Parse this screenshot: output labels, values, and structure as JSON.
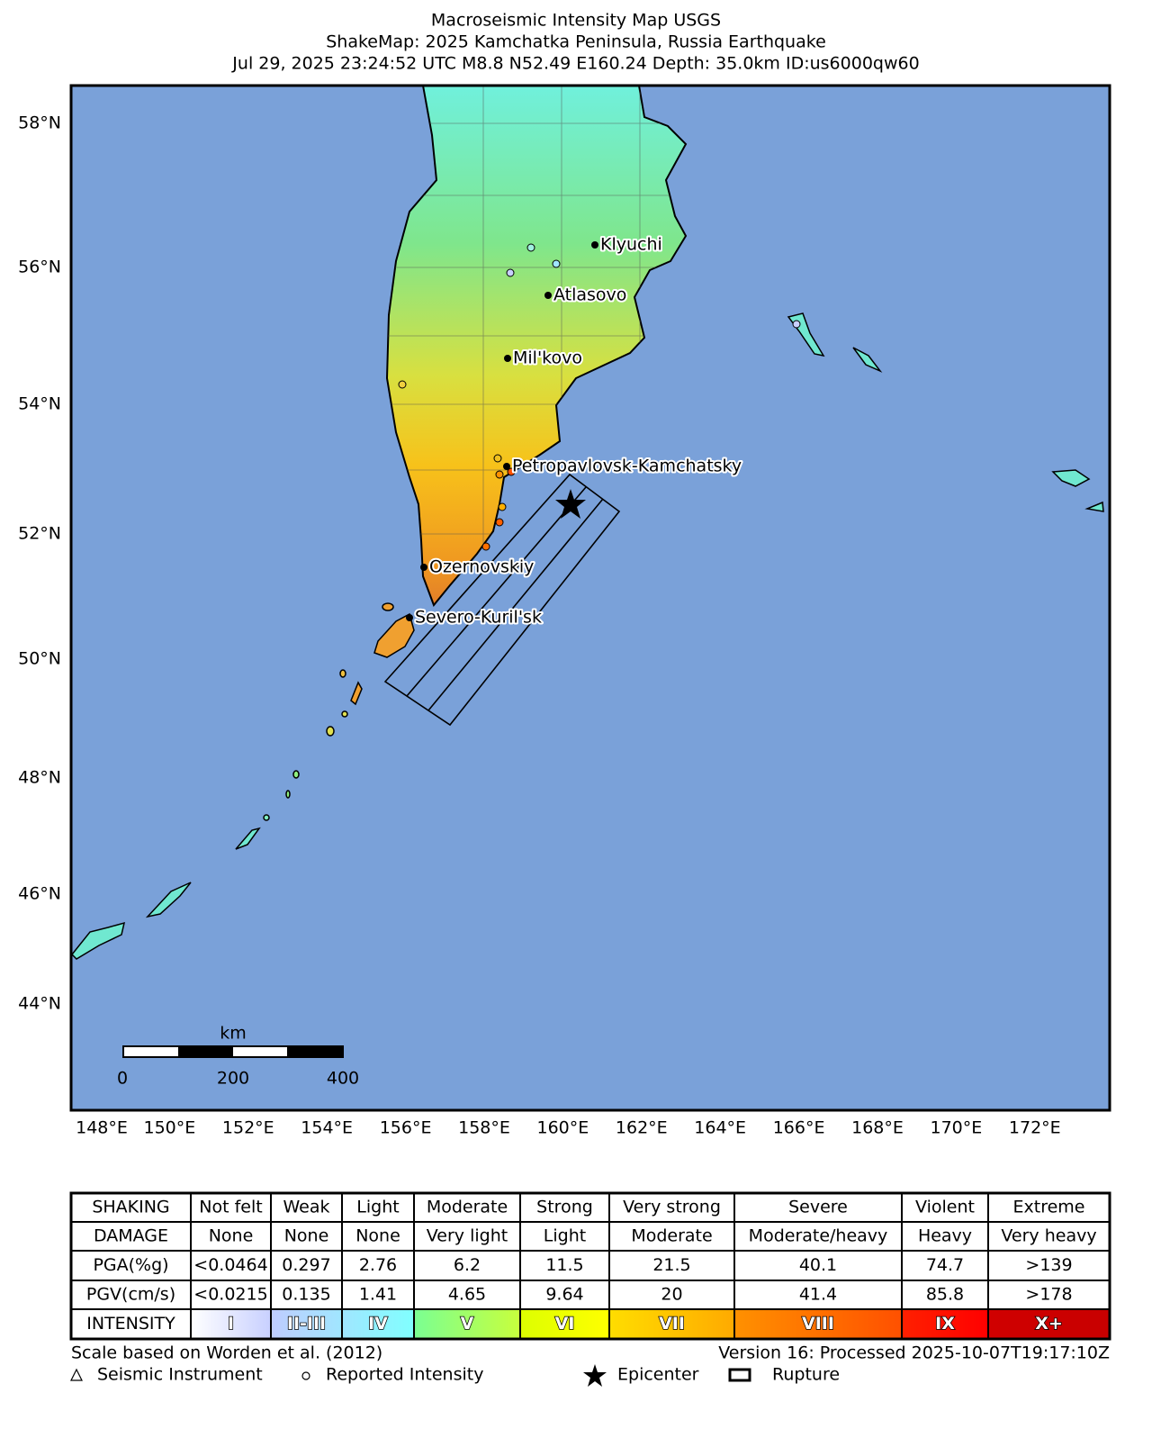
{
  "header": {
    "title": "Macroseismic Intensity Map USGS",
    "subtitle": "ShakeMap: 2025 Kamchatka Peninsula, Russia Earthquake",
    "details": "Jul 29, 2025 23:24:52 UTC M8.8 N52.49 E160.24 Depth: 35.0km ID:us6000qw60"
  },
  "map": {
    "lat_labels": [
      "58°N",
      "56°N",
      "54°N",
      "52°N",
      "50°N",
      "48°N",
      "46°N",
      "44°N"
    ],
    "lon_labels": [
      "148°E",
      "150°E",
      "152°E",
      "154°E",
      "156°E",
      "158°E",
      "160°E",
      "162°E",
      "164°E",
      "166°E",
      "168°E",
      "170°E",
      "172°E"
    ],
    "cities": [
      "Klyuchi",
      "Atlasovo",
      "Mil'kovo",
      "Petropavlovsk-Kamchatsky",
      "Ozernovskiy",
      "Severo-Kuril'sk"
    ],
    "scale_bar": {
      "unit": "km",
      "labels": [
        "0",
        "200",
        "400"
      ]
    }
  },
  "legend_table": {
    "rows": [
      [
        "SHAKING",
        "Not felt",
        "Weak",
        "Light",
        "Moderate",
        "Strong",
        "Very strong",
        "Severe",
        "Violent",
        "Extreme"
      ],
      [
        "DAMAGE",
        "None",
        "None",
        "None",
        "Very light",
        "Light",
        "Moderate",
        "Moderate/heavy",
        "Heavy",
        "Very heavy"
      ],
      [
        "PGA(%g)",
        "<0.0464",
        "0.297",
        "2.76",
        "6.2",
        "11.5",
        "21.5",
        "40.1",
        "74.7",
        ">139"
      ],
      [
        "PGV(cm/s)",
        "<0.0215",
        "0.135",
        "1.41",
        "4.65",
        "9.64",
        "20",
        "41.4",
        "85.8",
        ">178"
      ],
      [
        "INTENSITY",
        "I",
        "II-III",
        "IV",
        "V",
        "VI",
        "VII",
        "VIII",
        "IX",
        "X+"
      ]
    ]
  },
  "footer": {
    "scale_note": "Scale based on Worden et al. (2012)",
    "version": "Version 16: Processed 2025-10-07T19:17:10Z",
    "legend": [
      "Seismic Instrument",
      "Reported Intensity",
      "Epicenter",
      "Rupture"
    ]
  }
}
